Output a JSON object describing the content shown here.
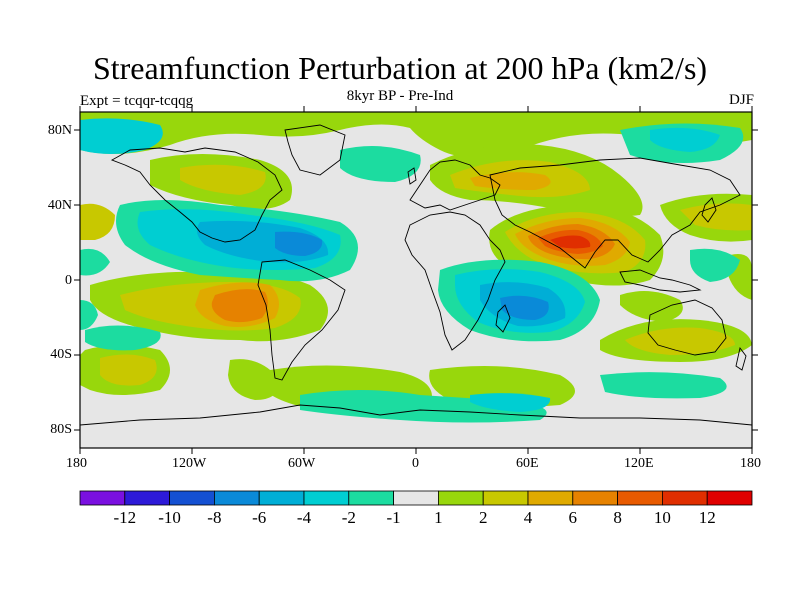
{
  "title": "Streamfunction Perturbation at 200 hPa (km2/s)",
  "experiment": "Expt = tcqqr-tcqqg",
  "subtitle": "8kyr BP - Pre-Ind",
  "season": "DJF",
  "lat_labels": [
    "80N",
    "40N",
    "0",
    "40S",
    "80S"
  ],
  "lon_labels": [
    "180",
    "120W",
    "60W",
    "0",
    "60E",
    "120E",
    "180"
  ],
  "colorbar": {
    "labels": [
      "-12",
      "-10",
      "-8",
      "-6",
      "-4",
      "-2",
      "-1",
      "1",
      "2",
      "4",
      "6",
      "8",
      "10",
      "12"
    ],
    "colors": [
      "#7a10e0",
      "#2d1ad8",
      "#1450d2",
      "#0a8ad8",
      "#00aed6",
      "#00ced2",
      "#1cdca0",
      "#e6e6e6",
      "#98d70c",
      "#c8c800",
      "#e0aa00",
      "#e68200",
      "#e85a00",
      "#e02e00",
      "#e00000"
    ]
  },
  "colors": {
    "ocean_bg": "#e6e6e6",
    "coast": "#000000"
  }
}
